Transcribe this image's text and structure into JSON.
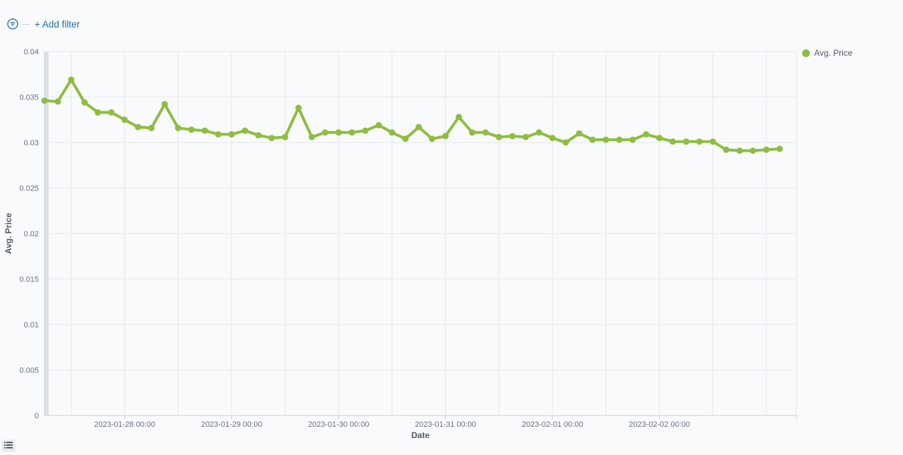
{
  "filter_bar": {
    "add_filter_label": "+ Add filter"
  },
  "legend": {
    "label": "Avg. Price",
    "color": "#8fbd40"
  },
  "colors": {
    "line": "#8fbd40",
    "grid": "#e4e7ec",
    "axis": "#c7cdd6"
  },
  "icons": {
    "filter": "filter-icon",
    "legend_toggle": "list-icon"
  },
  "chart_data": {
    "type": "line",
    "xlabel": "Date",
    "ylabel": "Avg. Price",
    "ylim": [
      0,
      0.04
    ],
    "yticks": [
      "0",
      "0.005",
      "0.01",
      "0.015",
      "0.02",
      "0.025",
      "0.03",
      "0.035",
      "0.04"
    ],
    "xtick_labels": [
      "2023-01-28 00:00",
      "2023-01-29 00:00",
      "2023-01-30 00:00",
      "2023-01-31 00:00",
      "2023-02-01 00:00",
      "2023-02-02 00:00"
    ],
    "x_start": "2023-01-27 06:00",
    "x_interval": "3h",
    "grid": true,
    "legend_position": "right",
    "series": [
      {
        "name": "Avg. Price",
        "values": [
          0.0346,
          0.0345,
          0.0369,
          0.0344,
          0.0333,
          0.0333,
          0.0325,
          0.0317,
          0.0316,
          0.0342,
          0.0316,
          0.0314,
          0.0313,
          0.0309,
          0.0309,
          0.0313,
          0.0308,
          0.0305,
          0.0306,
          0.0338,
          0.0306,
          0.0311,
          0.0311,
          0.0311,
          0.0313,
          0.0319,
          0.0311,
          0.0304,
          0.0317,
          0.0304,
          0.0307,
          0.0328,
          0.0311,
          0.0311,
          0.0306,
          0.0307,
          0.0306,
          0.0311,
          0.0305,
          0.03,
          0.031,
          0.0303,
          0.0303,
          0.0303,
          0.0303,
          0.0309,
          0.0305,
          0.0301,
          0.0301,
          0.0301,
          0.0301,
          0.0292,
          0.0291,
          0.0291,
          0.0292,
          0.0293
        ]
      }
    ]
  }
}
